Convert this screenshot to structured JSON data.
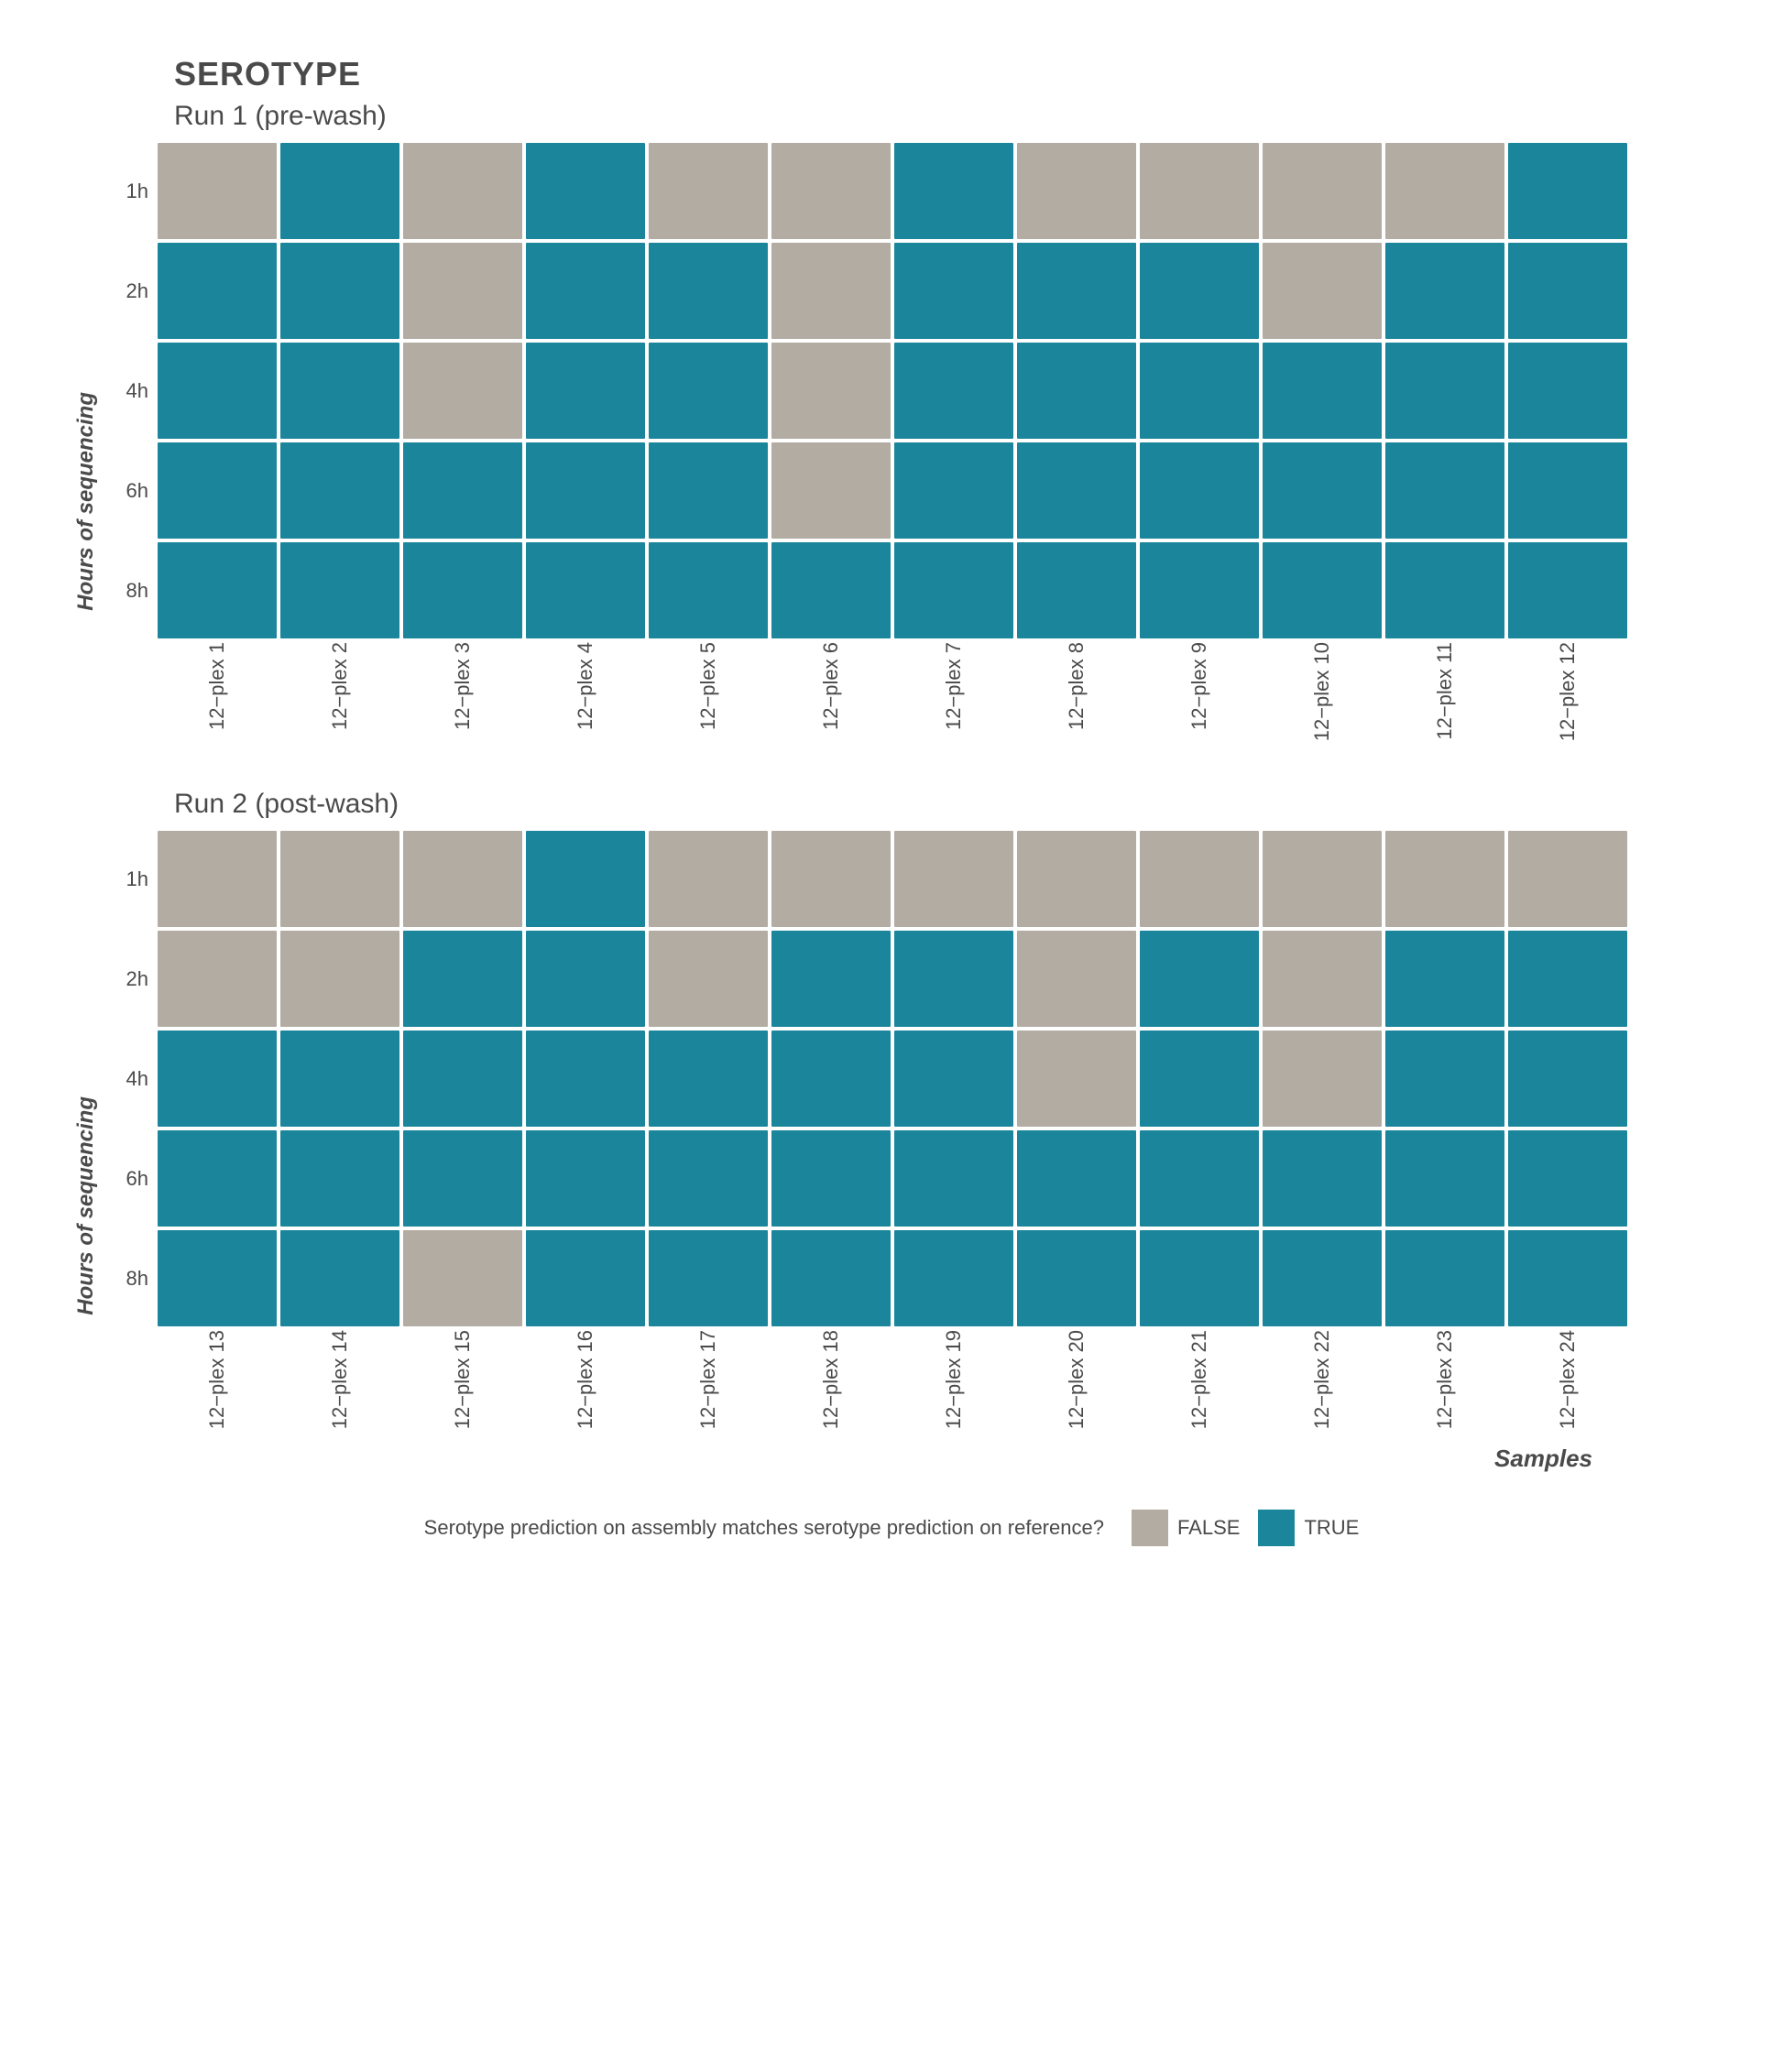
{
  "title": "SEROTYPE",
  "x_axis_title": "Samples",
  "y_axis_label": "Hours of sequencing",
  "colors": {
    "true": "#1b859c",
    "false": "#b2aca3",
    "gap": "#ffffff",
    "background": "#ffffff",
    "text": "#4a4a4a"
  },
  "cell": {
    "width": 130,
    "height": 105,
    "gap": 4
  },
  "y_ticks": [
    "1h",
    "2h",
    "4h",
    "6h",
    "8h"
  ],
  "panels": [
    {
      "subtitle": "Run 1 (pre-wash)",
      "x_labels": [
        "12−plex 1",
        "12−plex 2",
        "12−plex 3",
        "12−plex 4",
        "12−plex 5",
        "12−plex 6",
        "12−plex 7",
        "12−plex 8",
        "12−plex 9",
        "12−plex 10",
        "12−plex 11",
        "12−plex 12"
      ],
      "show_x_axis_title": false,
      "grid": [
        [
          false,
          true,
          false,
          true,
          false,
          false,
          true,
          false,
          false,
          false,
          false,
          true
        ],
        [
          true,
          true,
          false,
          true,
          true,
          false,
          true,
          true,
          true,
          false,
          true,
          true
        ],
        [
          true,
          true,
          false,
          true,
          true,
          false,
          true,
          true,
          true,
          true,
          true,
          true
        ],
        [
          true,
          true,
          true,
          true,
          true,
          false,
          true,
          true,
          true,
          true,
          true,
          true
        ],
        [
          true,
          true,
          true,
          true,
          true,
          true,
          true,
          true,
          true,
          true,
          true,
          true
        ]
      ]
    },
    {
      "subtitle": "Run 2 (post-wash)",
      "x_labels": [
        "12−plex 13",
        "12−plex 14",
        "12−plex 15",
        "12−plex 16",
        "12−plex 17",
        "12−plex 18",
        "12−plex 19",
        "12−plex 20",
        "12−plex 21",
        "12−plex 22",
        "12−plex 23",
        "12−plex 24"
      ],
      "show_x_axis_title": true,
      "grid": [
        [
          false,
          false,
          false,
          true,
          false,
          false,
          false,
          false,
          false,
          false,
          false,
          false
        ],
        [
          false,
          false,
          true,
          true,
          false,
          true,
          true,
          false,
          true,
          false,
          true,
          true
        ],
        [
          true,
          true,
          true,
          true,
          true,
          true,
          true,
          false,
          true,
          false,
          true,
          true
        ],
        [
          true,
          true,
          true,
          true,
          true,
          true,
          true,
          true,
          true,
          true,
          true,
          true
        ],
        [
          true,
          true,
          false,
          true,
          true,
          true,
          true,
          true,
          true,
          true,
          true,
          true
        ]
      ]
    }
  ],
  "legend": {
    "title": "Serotype prediction on assembly matches serotype prediction on reference?",
    "items": [
      {
        "label": "FALSE",
        "color_key": "false"
      },
      {
        "label": "TRUE",
        "color_key": "true"
      }
    ]
  }
}
